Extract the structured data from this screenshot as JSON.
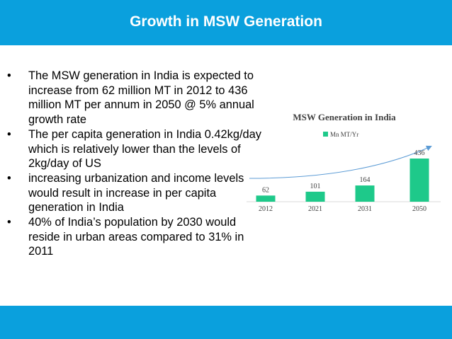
{
  "header": {
    "title": "Growth in MSW Generation"
  },
  "bullets": [
    {
      "symbol": "•",
      "text": "The MSW generation in India is expected to increase from 62 million MT in 2012 to 436 million MT per annum in 2050 @ 5% annual growth rate"
    },
    {
      "symbol": "•",
      "text": "The per capita generation in India 0.42kg/day which is relatively lower than the levels of 2kg/day of US"
    },
    {
      "symbol": "•",
      "text": "increasing urbanization and income levels would result in increase in per capita generation in India"
    },
    {
      "symbol": "•",
      "text": "40% of India’s population by 2030 would reside in urban areas compared to 31% in 2011"
    }
  ],
  "colors": {
    "brand": "#0aa0dd",
    "bar": "#1ec98a",
    "trend": "#5b9bd5"
  },
  "chart_data": {
    "type": "bar",
    "title": "MSW Generation in India",
    "legend": "Mn MT/Yr",
    "categories": [
      "2012",
      "2021",
      "2031",
      "2050"
    ],
    "values": [
      62,
      101,
      164,
      436
    ],
    "ylim": [
      0,
      436
    ],
    "grid": false,
    "trendline": true
  }
}
